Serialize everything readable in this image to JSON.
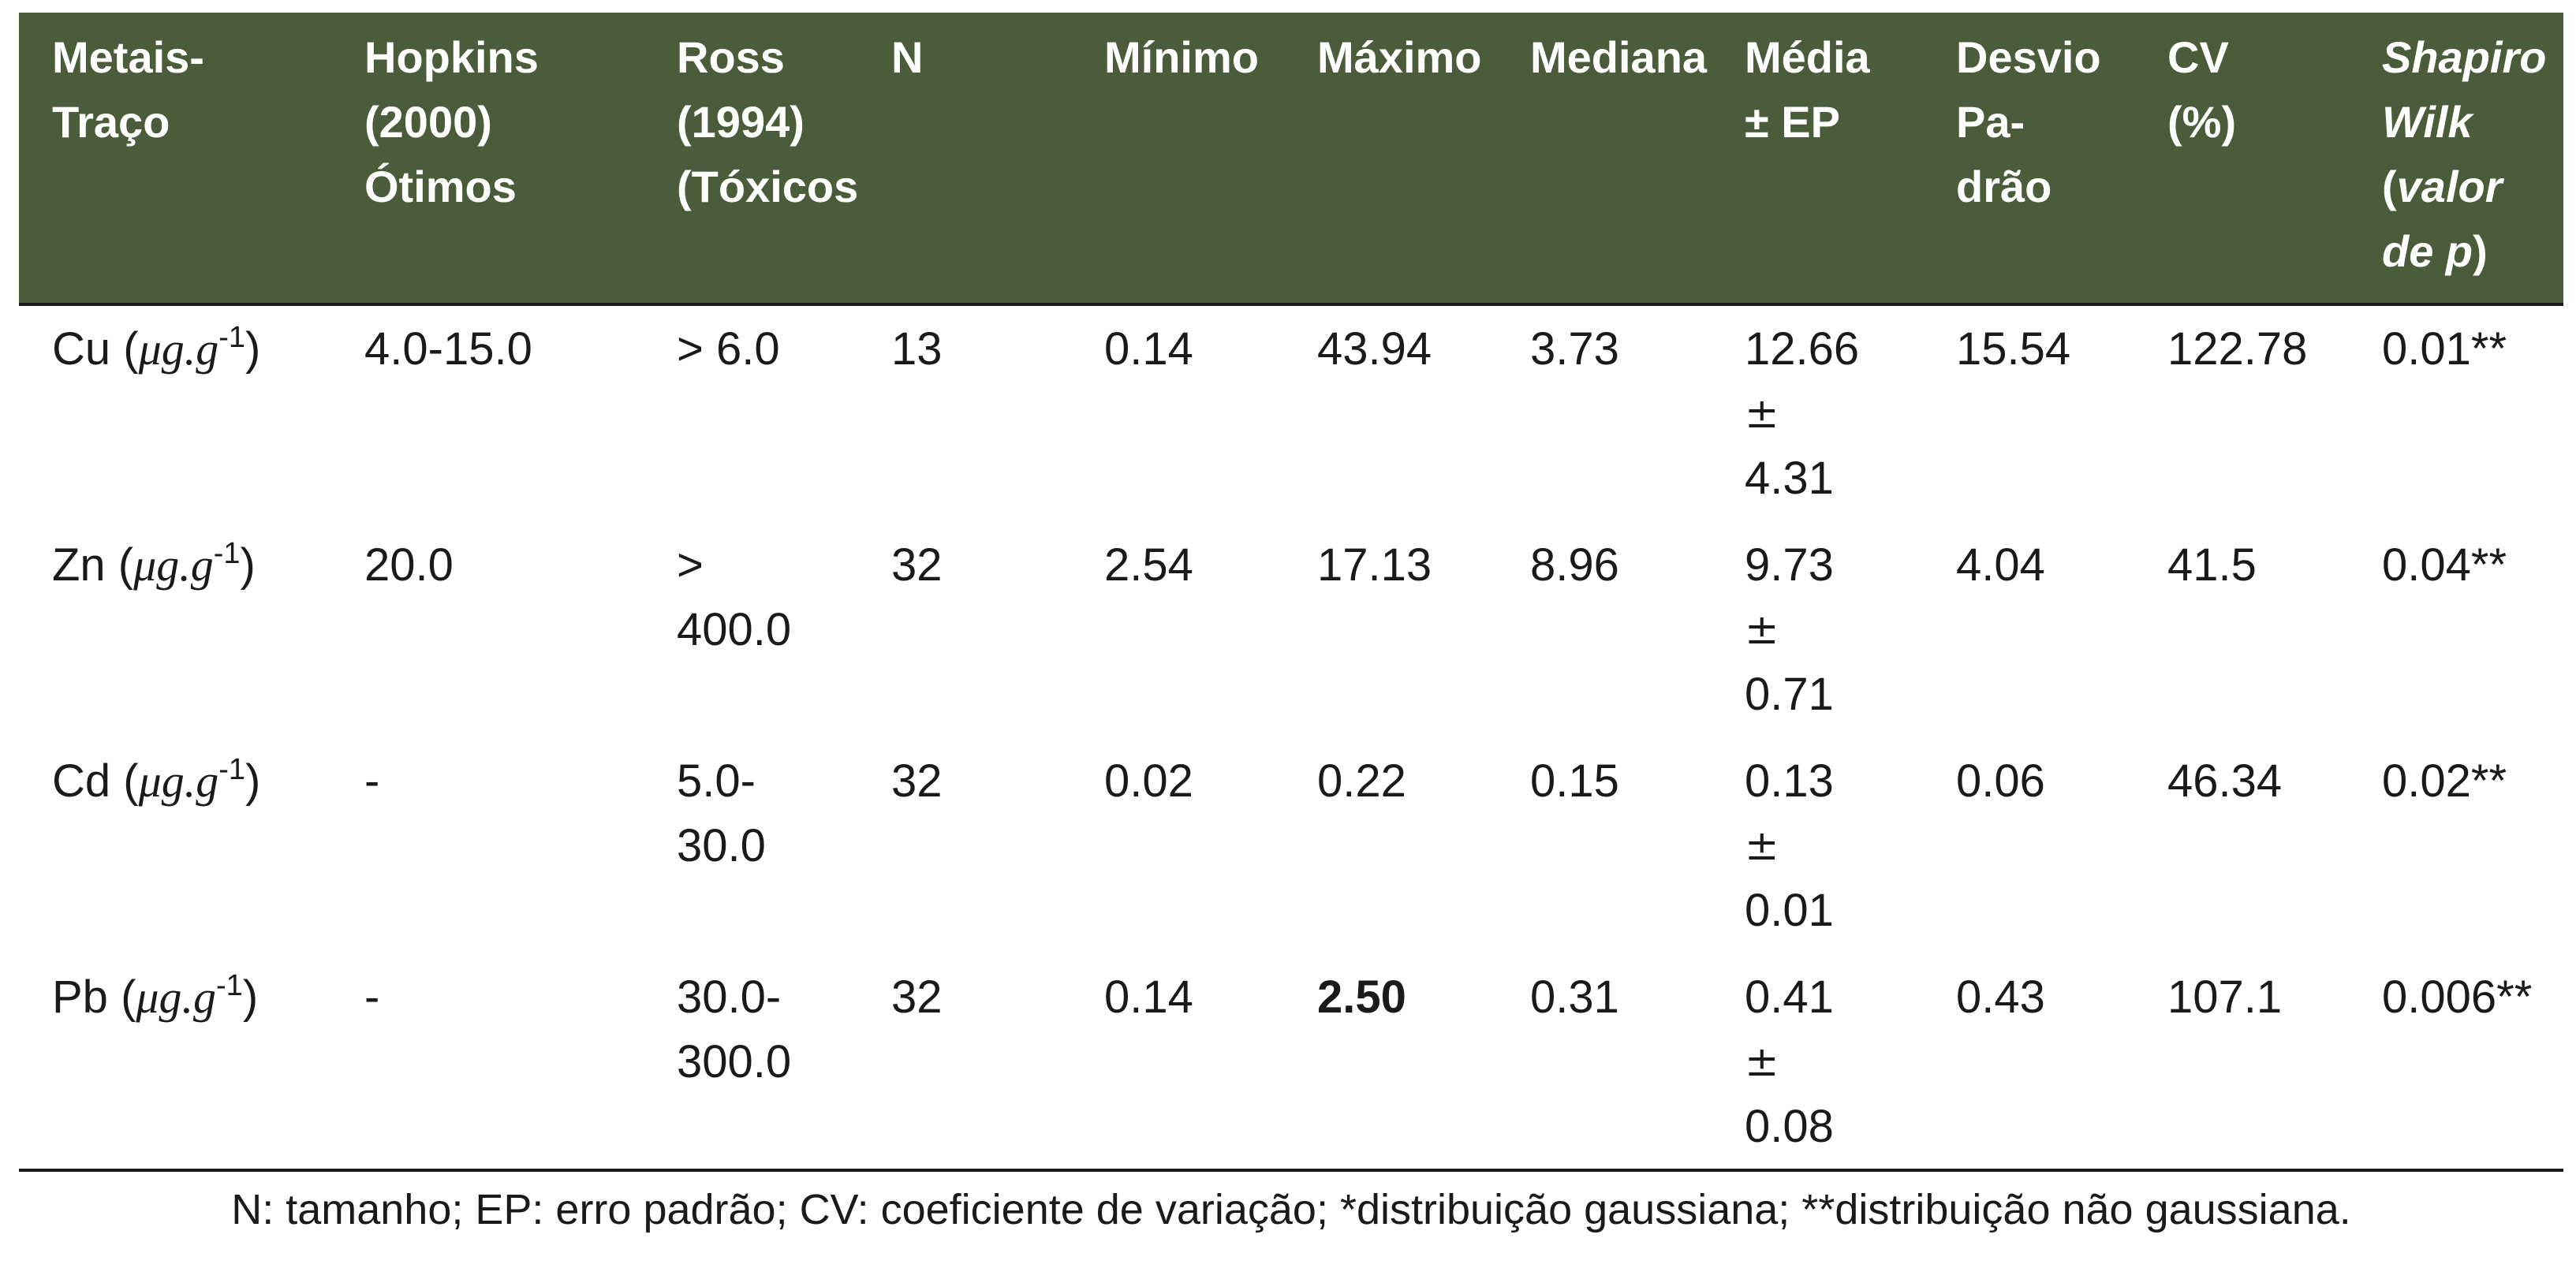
{
  "table": {
    "header": {
      "metais_l1": "Metais-",
      "metais_l2": "Traço",
      "hopkins_l1": "Hopkins",
      "hopkins_l2": "(2000)",
      "hopkins_l3": "Ótimos",
      "ross_l1": "Ross",
      "ross_l2": "(1994)",
      "ross_l3": "(Tóxicos",
      "n": "N",
      "minimo": "Mínimo",
      "maximo": "Máximo",
      "mediana": "Mediana",
      "media_l1": "Média",
      "media_l2": "± EP",
      "desvio_l1": "Desvio",
      "desvio_l2": "Pa-",
      "desvio_l3": "drão",
      "cv_l1": "CV",
      "cv_l2": "(%)",
      "sw_l1": "Shapiro",
      "sw_l2": "Wilk",
      "sw_l3_open": "(",
      "sw_l3_italic": "valor",
      "sw_l4_italic": "de p",
      "sw_l4_close": ")"
    },
    "unit": {
      "mu": "μg.g",
      "exp": "-1"
    },
    "rows": [
      {
        "metal": "Cu",
        "hopkins": "4.0-15.0",
        "ross_l1": "> 6.0",
        "ross_l2": "",
        "n": "13",
        "minimo": "0.14",
        "maximo": "43.94",
        "mediana": "3.73",
        "media_val": "12.66",
        "media_pm": "±",
        "media_ep": "4.31",
        "desvio": "15.54",
        "cv": "122.78",
        "sw": "0.01**"
      },
      {
        "metal": "Zn",
        "hopkins": "20.0",
        "ross_l1": ">",
        "ross_l2": "400.0",
        "n": "32",
        "minimo": "2.54",
        "maximo": "17.13",
        "mediana": "8.96",
        "media_val": "9.73",
        "media_pm": "±",
        "media_ep": "0.71",
        "desvio": "4.04",
        "cv": "41.5",
        "sw": "0.04**"
      },
      {
        "metal": "Cd",
        "hopkins": "-",
        "ross_l1": "5.0-",
        "ross_l2": "30.0",
        "n": "32",
        "minimo": "0.02",
        "maximo": "0.22",
        "mediana": "0.15",
        "media_val": "0.13",
        "media_pm": "±",
        "media_ep": "0.01",
        "desvio": "0.06",
        "cv": "46.34",
        "sw": "0.02**"
      },
      {
        "metal": "Pb",
        "hopkins": "-",
        "ross_l1": "30.0-",
        "ross_l2": "300.0",
        "n": "32",
        "minimo": "0.14",
        "maximo": "2.50",
        "mediana": "0.31",
        "media_val": "0.41",
        "media_pm": "±",
        "media_ep": "0.08",
        "desvio": "0.43",
        "cv": "107.1",
        "sw": "0.006**"
      }
    ],
    "header_bg_color": "#4a5c3a",
    "header_text_color": "#ffffff"
  },
  "footnote": "N: tamanho; EP: erro padrão; CV: coeficiente de variação; *distribuição gaussiana; **distribuição não gaussiana."
}
